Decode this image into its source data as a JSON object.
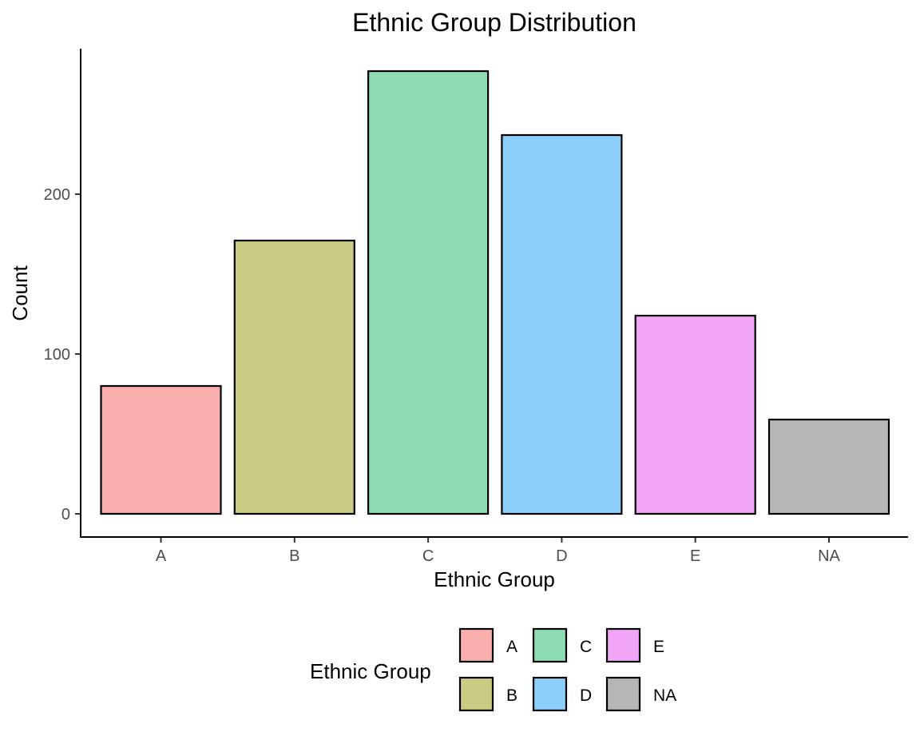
{
  "chart_data": {
    "type": "bar",
    "title": "Ethnic Group Distribution",
    "xlabel": "Ethnic Group",
    "ylabel": "Count",
    "categories": [
      "A",
      "B",
      "C",
      "D",
      "E",
      "NA"
    ],
    "values": [
      80,
      171,
      277,
      237,
      124,
      59
    ],
    "colors": [
      "#f8aeac",
      "#cbcc84",
      "#8ddbb2",
      "#8ccffa",
      "#f0a5f6",
      "#b6b6b6"
    ],
    "ylim": [
      0,
      290
    ],
    "yticks": [
      0,
      100,
      200
    ],
    "grid": false,
    "legend": {
      "title": "Ethnic Group",
      "position": "bottom",
      "entries": [
        "A",
        "B",
        "C",
        "D",
        "E",
        "NA"
      ]
    }
  }
}
